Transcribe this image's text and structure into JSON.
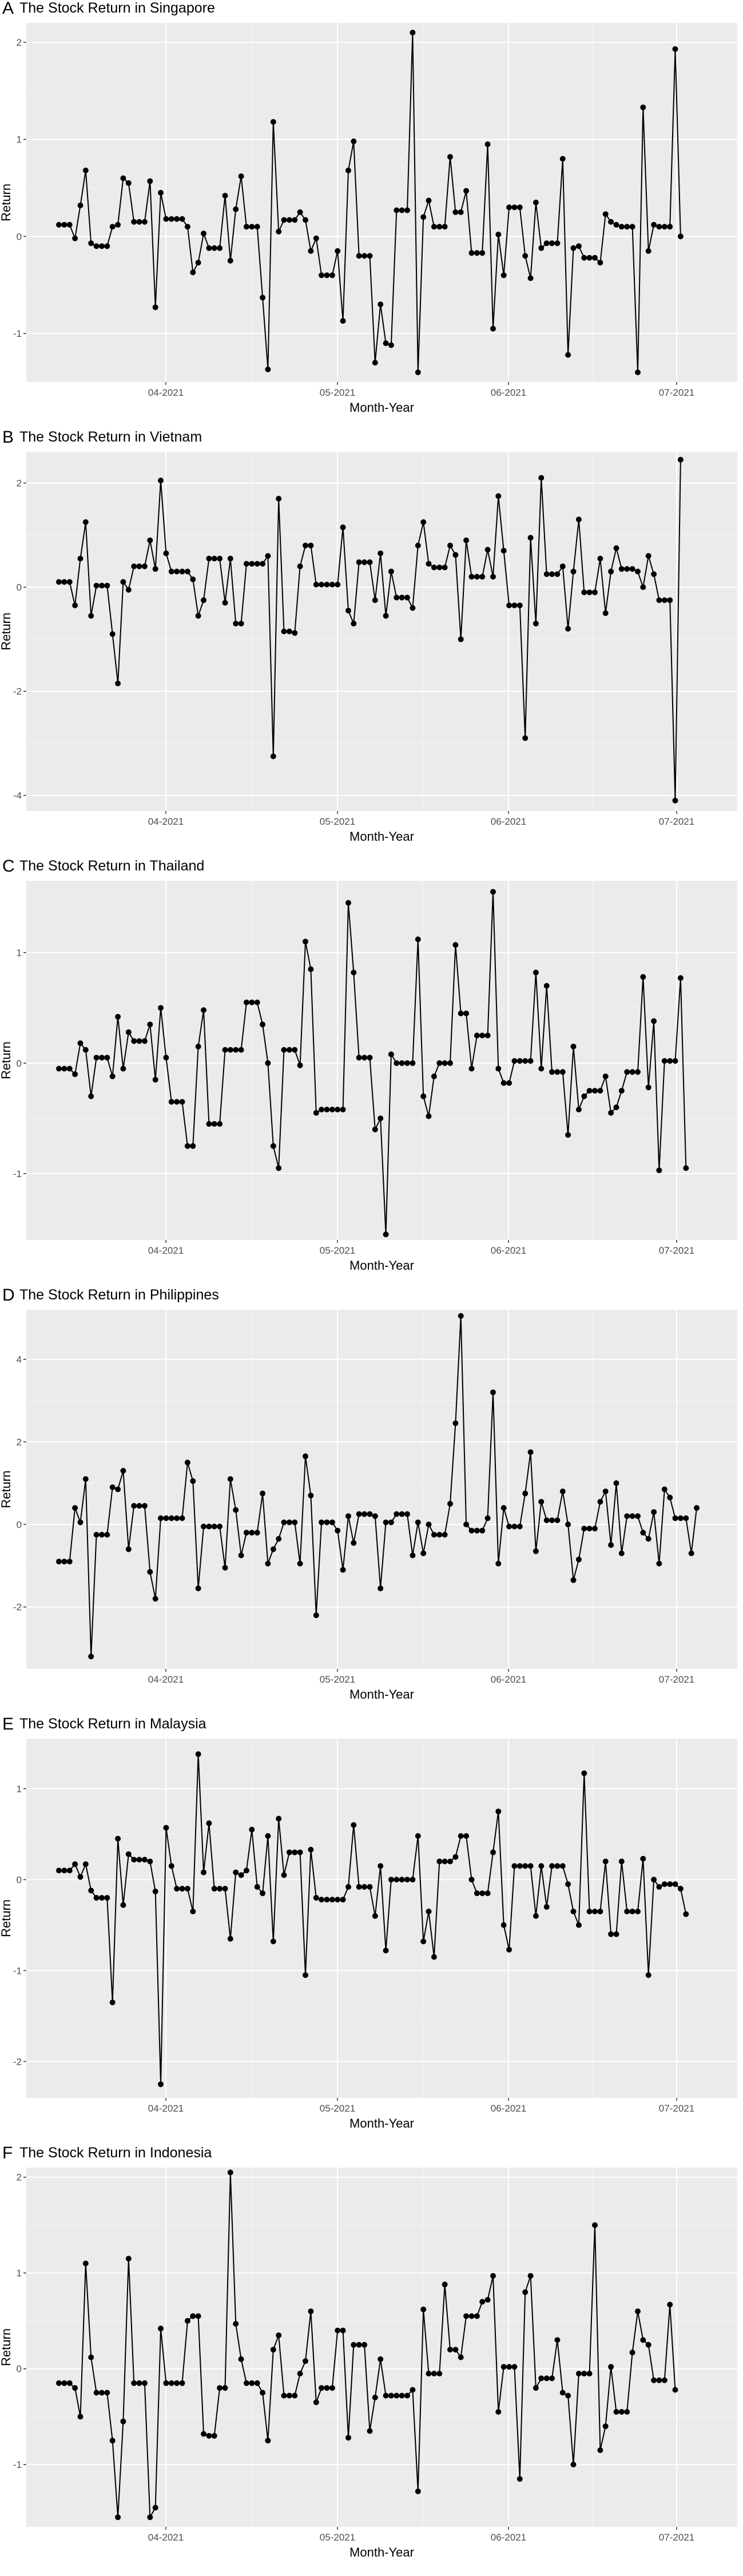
{
  "figure": {
    "xlabel": "Month-Year",
    "ylabel": "Return",
    "x_ticks": [
      "04-2021",
      "05-2021",
      "06-2021",
      "07-2021"
    ]
  },
  "chart_data": [
    {
      "type": "line",
      "panel_letter": "A",
      "title": "The Stock Return in Singapore",
      "xlabel": "Month-Year",
      "ylabel": "Return",
      "y_ticks": [
        2,
        1,
        0,
        -1
      ],
      "ylim": [
        -1.5,
        2.2
      ],
      "values": [
        0.12,
        0.12,
        0.12,
        -0.02,
        0.32,
        0.68,
        -0.07,
        -0.1,
        -0.1,
        -0.1,
        0.1,
        0.12,
        0.6,
        0.55,
        0.15,
        0.15,
        0.15,
        0.57,
        -0.73,
        0.45,
        0.18,
        0.18,
        0.18,
        0.18,
        0.1,
        -0.37,
        -0.27,
        0.03,
        -0.12,
        -0.12,
        -0.12,
        0.42,
        -0.25,
        0.28,
        0.62,
        0.1,
        0.1,
        0.1,
        -0.63,
        -1.37,
        1.18,
        0.05,
        0.17,
        0.17,
        0.17,
        0.25,
        0.17,
        -0.15,
        -0.02,
        -0.4,
        -0.4,
        -0.4,
        -0.15,
        -0.87,
        0.68,
        0.98,
        -0.2,
        -0.2,
        -0.2,
        -1.3,
        -0.7,
        -1.1,
        -1.12,
        0.27,
        0.27,
        0.27,
        2.1,
        -1.4,
        0.2,
        0.37,
        0.1,
        0.1,
        0.1,
        0.82,
        0.25,
        0.25,
        0.47,
        -0.17,
        -0.17,
        -0.17,
        0.95,
        -0.95,
        0.02,
        -0.4,
        0.3,
        0.3,
        0.3,
        -0.2,
        -0.43,
        0.35,
        -0.12,
        -0.07,
        -0.07,
        -0.07,
        0.8,
        -1.22,
        -0.12,
        -0.1,
        -0.22,
        -0.22,
        -0.22,
        -0.27,
        0.23,
        0.15,
        0.12,
        0.1,
        0.1,
        0.1,
        -1.4,
        1.33,
        -0.15,
        0.12,
        0.1,
        0.1,
        0.1,
        1.93,
        0.0
      ]
    },
    {
      "type": "line",
      "panel_letter": "B",
      "title": "The Stock Return in Vietnam",
      "xlabel": "Month-Year",
      "ylabel": "Return",
      "y_ticks": [
        2,
        0,
        -2,
        -4
      ],
      "ylim": [
        -4.3,
        2.6
      ],
      "values": [
        0.1,
        0.1,
        0.1,
        -0.35,
        0.55,
        1.25,
        -0.55,
        0.03,
        0.03,
        0.03,
        -0.9,
        -1.85,
        0.1,
        -0.05,
        0.4,
        0.4,
        0.4,
        0.9,
        0.35,
        2.05,
        0.65,
        0.3,
        0.3,
        0.3,
        0.3,
        0.15,
        -0.55,
        -0.25,
        0.55,
        0.55,
        0.55,
        -0.3,
        0.55,
        -0.7,
        -0.7,
        0.45,
        0.45,
        0.45,
        0.45,
        0.6,
        -3.25,
        1.7,
        -0.85,
        -0.85,
        -0.88,
        0.4,
        0.8,
        0.8,
        0.05,
        0.05,
        0.05,
        0.05,
        0.05,
        1.15,
        -0.45,
        -0.7,
        0.48,
        0.48,
        0.48,
        -0.25,
        0.65,
        -0.55,
        0.3,
        -0.2,
        -0.2,
        -0.2,
        -0.4,
        0.8,
        1.25,
        0.45,
        0.38,
        0.38,
        0.38,
        0.8,
        0.62,
        -1.0,
        0.9,
        0.2,
        0.2,
        0.2,
        0.72,
        0.2,
        1.75,
        0.7,
        -0.35,
        -0.35,
        -0.35,
        -2.9,
        0.95,
        -0.7,
        2.1,
        0.25,
        0.25,
        0.25,
        0.4,
        -0.8,
        0.3,
        1.3,
        -0.1,
        -0.1,
        -0.1,
        0.55,
        -0.5,
        0.3,
        0.75,
        0.35,
        0.35,
        0.35,
        0.3,
        0.0,
        0.6,
        0.25,
        -0.25,
        -0.25,
        -0.25,
        -4.1,
        2.45
      ]
    },
    {
      "type": "line",
      "panel_letter": "C",
      "title": "The Stock Return in Thailand",
      "xlabel": "Month-Year",
      "ylabel": "Return",
      "y_ticks": [
        1,
        0,
        -1
      ],
      "ylim": [
        -1.6,
        1.65
      ],
      "values": [
        -0.05,
        -0.05,
        -0.05,
        -0.1,
        0.18,
        0.12,
        -0.3,
        0.05,
        0.05,
        0.05,
        -0.12,
        0.42,
        -0.05,
        0.28,
        0.2,
        0.2,
        0.2,
        0.35,
        -0.15,
        0.5,
        0.05,
        -0.35,
        -0.35,
        -0.35,
        -0.75,
        -0.75,
        0.15,
        0.48,
        -0.55,
        -0.55,
        -0.55,
        0.12,
        0.12,
        0.12,
        0.12,
        0.55,
        0.55,
        0.55,
        0.35,
        0.0,
        -0.75,
        -0.95,
        0.12,
        0.12,
        0.12,
        -0.02,
        1.1,
        0.85,
        -0.45,
        -0.42,
        -0.42,
        -0.42,
        -0.42,
        -0.42,
        1.45,
        0.82,
        0.05,
        0.05,
        0.05,
        -0.6,
        -0.5,
        -1.55,
        0.08,
        0.0,
        0.0,
        0.0,
        0.0,
        1.12,
        -0.3,
        -0.48,
        -0.12,
        0.0,
        0.0,
        0.0,
        1.07,
        0.45,
        0.45,
        -0.05,
        0.25,
        0.25,
        0.25,
        1.55,
        -0.05,
        -0.18,
        -0.18,
        0.02,
        0.02,
        0.02,
        0.02,
        0.82,
        -0.05,
        0.7,
        -0.08,
        -0.08,
        -0.08,
        -0.65,
        0.15,
        -0.42,
        -0.3,
        -0.25,
        -0.25,
        -0.25,
        -0.12,
        -0.45,
        -0.4,
        -0.25,
        -0.08,
        -0.08,
        -0.08,
        0.78,
        -0.22,
        0.38,
        -0.97,
        0.02,
        0.02,
        0.02,
        0.77,
        -0.95
      ]
    },
    {
      "type": "line",
      "panel_letter": "D",
      "title": "The Stock Return in Philippines",
      "xlabel": "Month-Year",
      "ylabel": "Return",
      "y_ticks": [
        4,
        2,
        0,
        -2
      ],
      "ylim": [
        -3.5,
        5.2
      ],
      "values": [
        -0.9,
        -0.9,
        -0.9,
        0.4,
        0.05,
        1.1,
        -3.2,
        -0.25,
        -0.25,
        -0.25,
        0.9,
        0.85,
        1.3,
        -0.6,
        0.45,
        0.45,
        0.45,
        -1.15,
        -1.8,
        0.15,
        0.15,
        0.15,
        0.15,
        0.15,
        1.5,
        1.05,
        -1.55,
        -0.05,
        -0.05,
        -0.05,
        -0.05,
        -1.05,
        1.1,
        0.35,
        -0.75,
        -0.2,
        -0.2,
        -0.2,
        0.75,
        -0.95,
        -0.6,
        -0.35,
        0.05,
        0.05,
        0.05,
        -0.95,
        1.65,
        0.7,
        -2.2,
        0.05,
        0.05,
        0.05,
        -0.15,
        -1.1,
        0.2,
        -0.45,
        0.25,
        0.25,
        0.25,
        0.2,
        -1.55,
        0.05,
        0.05,
        0.25,
        0.25,
        0.25,
        -0.75,
        0.05,
        -0.7,
        0.0,
        -0.25,
        -0.25,
        -0.25,
        0.5,
        2.45,
        5.05,
        0.0,
        -0.15,
        -0.15,
        -0.15,
        0.15,
        3.2,
        -0.95,
        0.4,
        -0.05,
        -0.05,
        -0.05,
        0.75,
        1.75,
        -0.65,
        0.55,
        0.1,
        0.1,
        0.1,
        0.8,
        0.0,
        -1.35,
        -0.85,
        -0.1,
        -0.1,
        -0.1,
        0.55,
        0.8,
        -0.5,
        1.0,
        -0.7,
        0.2,
        0.2,
        0.2,
        -0.2,
        -0.35,
        0.3,
        -0.95,
        0.85,
        0.65,
        0.15,
        0.15,
        0.15,
        -0.7,
        0.4
      ]
    },
    {
      "type": "line",
      "panel_letter": "E",
      "title": "The Stock Return in Malaysia",
      "xlabel": "Month-Year",
      "ylabel": "Return",
      "y_ticks": [
        1,
        0,
        -1,
        -2
      ],
      "ylim": [
        -2.4,
        1.55
      ],
      "values": [
        0.1,
        0.1,
        0.1,
        0.17,
        0.03,
        0.17,
        -0.12,
        -0.2,
        -0.2,
        -0.2,
        -1.35,
        0.45,
        -0.28,
        0.28,
        0.22,
        0.22,
        0.22,
        0.2,
        -0.13,
        -2.25,
        0.57,
        0.15,
        -0.1,
        -0.1,
        -0.1,
        -0.35,
        1.38,
        0.08,
        0.62,
        -0.1,
        -0.1,
        -0.1,
        -0.65,
        0.08,
        0.05,
        0.1,
        0.55,
        -0.08,
        -0.15,
        0.48,
        -0.68,
        0.67,
        0.05,
        0.3,
        0.3,
        0.3,
        -1.05,
        0.33,
        -0.2,
        -0.22,
        -0.22,
        -0.22,
        -0.22,
        -0.22,
        -0.08,
        0.6,
        -0.08,
        -0.08,
        -0.08,
        -0.4,
        0.15,
        -0.78,
        0.0,
        0.0,
        0.0,
        0.0,
        0.0,
        0.48,
        -0.68,
        -0.35,
        -0.85,
        0.2,
        0.2,
        0.2,
        0.25,
        0.48,
        0.48,
        0.0,
        -0.15,
        -0.15,
        -0.15,
        0.3,
        0.75,
        -0.5,
        -0.77,
        0.15,
        0.15,
        0.15,
        0.15,
        -0.4,
        0.15,
        -0.3,
        0.15,
        0.15,
        0.15,
        -0.05,
        -0.35,
        -0.5,
        1.17,
        -0.35,
        -0.35,
        -0.35,
        0.2,
        -0.6,
        -0.6,
        0.2,
        -0.35,
        -0.35,
        -0.35,
        0.23,
        -1.05,
        0.0,
        -0.08,
        -0.05,
        -0.05,
        -0.05,
        -0.1,
        -0.38
      ]
    },
    {
      "type": "line",
      "panel_letter": "F",
      "title": "The Stock Return in Indonesia",
      "xlabel": "Month-Year",
      "ylabel": "Return",
      "y_ticks": [
        2,
        1,
        0,
        -1
      ],
      "ylim": [
        -1.65,
        2.1
      ],
      "values": [
        -0.15,
        -0.15,
        -0.15,
        -0.2,
        -0.5,
        1.1,
        0.12,
        -0.25,
        -0.25,
        -0.25,
        -0.75,
        -1.55,
        -0.55,
        1.15,
        -0.15,
        -0.15,
        -0.15,
        -1.55,
        -1.45,
        0.42,
        -0.15,
        -0.15,
        -0.15,
        -0.15,
        0.5,
        0.55,
        0.55,
        -0.68,
        -0.7,
        -0.7,
        -0.2,
        -0.2,
        2.05,
        0.47,
        0.1,
        -0.15,
        -0.15,
        -0.15,
        -0.25,
        -0.75,
        0.2,
        0.35,
        -0.28,
        -0.28,
        -0.28,
        -0.05,
        0.08,
        0.6,
        -0.35,
        -0.2,
        -0.2,
        -0.2,
        0.4,
        0.4,
        -0.72,
        0.25,
        0.25,
        0.25,
        -0.65,
        -0.3,
        0.1,
        -0.28,
        -0.28,
        -0.28,
        -0.28,
        -0.28,
        -0.22,
        -1.28,
        0.62,
        -0.05,
        -0.05,
        -0.05,
        0.88,
        0.2,
        0.2,
        0.12,
        0.55,
        0.55,
        0.55,
        0.7,
        0.72,
        0.97,
        -0.45,
        0.02,
        0.02,
        0.02,
        -1.15,
        0.8,
        0.97,
        -0.2,
        -0.1,
        -0.1,
        -0.1,
        0.3,
        -0.25,
        -0.28,
        -1.0,
        -0.05,
        -0.05,
        -0.05,
        1.5,
        -0.85,
        -0.6,
        0.02,
        -0.45,
        -0.45,
        -0.45,
        0.17,
        0.6,
        0.3,
        0.25,
        -0.12,
        -0.12,
        -0.12,
        0.67,
        -0.22
      ]
    }
  ]
}
